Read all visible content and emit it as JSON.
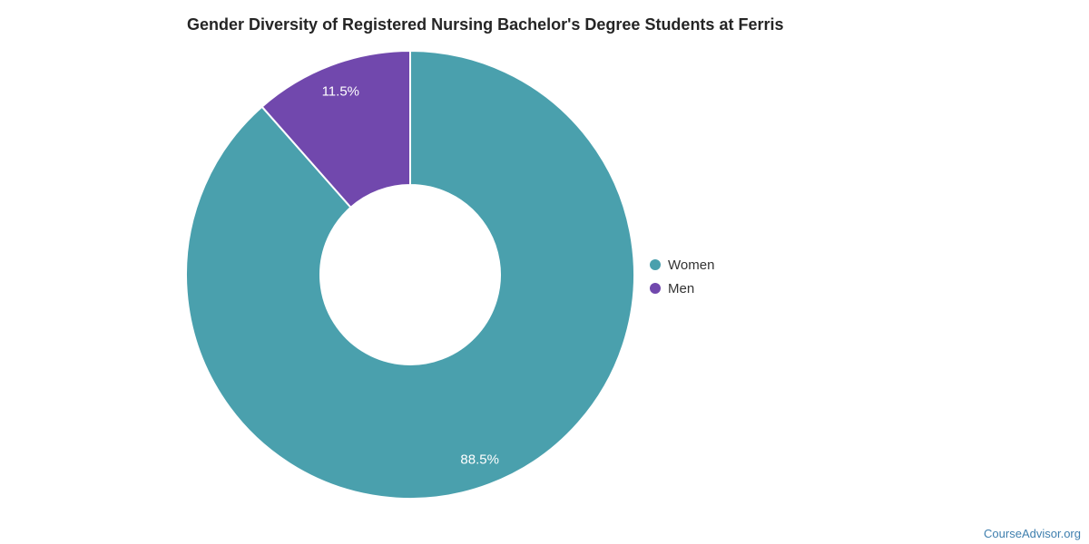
{
  "chart_data": {
    "type": "pie",
    "subtype": "donut",
    "title": "Gender Diversity of Registered Nursing Bachelor's Degree Students at Ferris",
    "unit": "%",
    "legend_position": "right",
    "inner_radius_ratio": 0.4,
    "label_color": "#ffffff",
    "series": [
      {
        "name": "Women",
        "value": 88.5,
        "label": "88.5%",
        "color": "#4aa0ad"
      },
      {
        "name": "Men",
        "value": 11.5,
        "label": "11.5%",
        "color": "#7148ad"
      }
    ]
  },
  "legend": {
    "items": [
      {
        "label": "Women",
        "color": "#4aa0ad"
      },
      {
        "label": "Men",
        "color": "#7148ad"
      }
    ]
  },
  "footer": {
    "watermark": "CourseAdvisor.org",
    "watermark_color": "#3f7fae"
  }
}
